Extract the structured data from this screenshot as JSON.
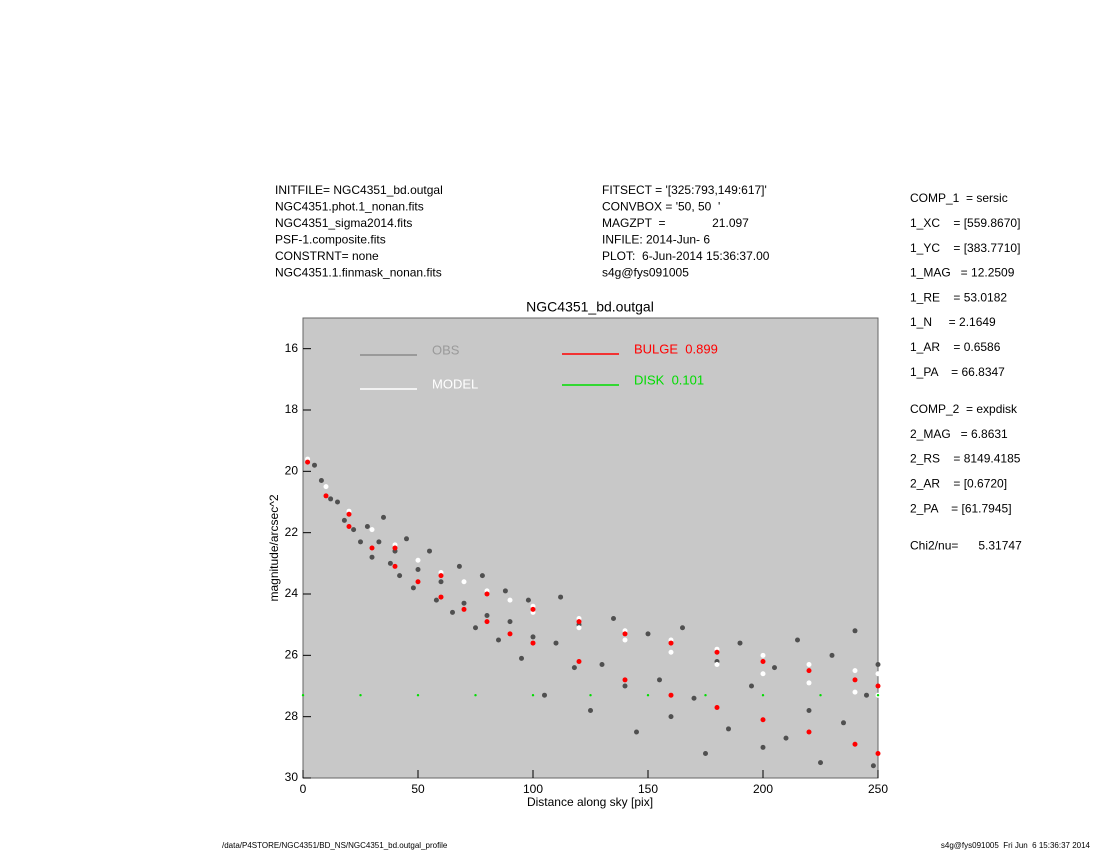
{
  "info_left": [
    "INITFILE= NGC4351_bd.outgal",
    "NGC4351.phot.1_nonan.fits",
    "NGC4351_sigma2014.fits",
    "PSF-1.composite.fits",
    "CONSTRNT= none",
    "NGC4351.1.finmask_nonan.fits"
  ],
  "info_middle": [
    "FITSECT = '[325:793,149:617]'",
    "CONVBOX = '50, 50  '",
    "MAGZPT  =              21.097",
    "INFILE: 2014-Jun- 6",
    "PLOT:  6-Jun-2014 15:36:37.00",
    "s4g@fys091005"
  ],
  "fit_params": [
    [
      "COMP_1  = sersic",
      "1_XC    = [559.8670]",
      "1_YC    = [383.7710]",
      "1_MAG   = 12.2509",
      "1_RE    = 53.0182",
      "1_N     = 2.1649",
      "1_AR    = 0.6586",
      "1_PA    = 66.8347"
    ],
    [
      "COMP_2  = expdisk",
      "2_MAG   = 6.8631",
      "2_RS    = 8149.4185",
      "2_AR    = [0.6720]",
      "2_PA    = [61.7945]"
    ],
    [
      "Chi2/nu=      5.31747"
    ]
  ],
  "footer_left": "/data/P4STORE/NGC4351/BD_NS/NGC4351_bd.outgal_profile",
  "footer_right": "s4g@fys091005  Fri Jun  6 15:36:37 2014",
  "chart_data": {
    "type": "scatter",
    "title": "NGC4351_bd.outgal",
    "x_label": "Distance along sky [pix]",
    "y_label": "magnitude/arcsec^2",
    "xlim": [
      0,
      250
    ],
    "xticks": [
      0,
      50,
      100,
      150,
      200,
      250
    ],
    "ylim": [
      15,
      30
    ],
    "y_inverted": true,
    "yticks": [
      16,
      18,
      20,
      22,
      24,
      26,
      28,
      30
    ],
    "background": "#c8c8c8",
    "series": [
      {
        "name": "OBS",
        "color": "#505050",
        "label_color": "#9a9a9a",
        "x": [
          5,
          8,
          12,
          15,
          18,
          22,
          25,
          28,
          30,
          33,
          35,
          38,
          40,
          42,
          45,
          48,
          50,
          55,
          58,
          60,
          65,
          68,
          70,
          75,
          78,
          80,
          85,
          88,
          90,
          95,
          98,
          100,
          105,
          110,
          112,
          118,
          120,
          125,
          130,
          135,
          140,
          145,
          150,
          155,
          160,
          165,
          170,
          175,
          180,
          185,
          190,
          195,
          200,
          205,
          210,
          215,
          220,
          225,
          230,
          235,
          240,
          245,
          248,
          250
        ],
        "y": [
          19.8,
          20.3,
          20.9,
          21.0,
          21.6,
          21.9,
          22.3,
          21.8,
          22.8,
          22.3,
          21.5,
          23.0,
          22.6,
          23.4,
          22.2,
          23.8,
          23.2,
          22.6,
          24.2,
          23.6,
          24.6,
          23.1,
          24.3,
          25.1,
          23.4,
          24.7,
          25.5,
          23.9,
          24.9,
          26.1,
          24.2,
          25.4,
          27.3,
          25.6,
          24.1,
          26.4,
          25.0,
          27.8,
          26.3,
          24.8,
          27.0,
          28.5,
          25.3,
          26.8,
          28.0,
          25.1,
          27.4,
          29.2,
          26.2,
          28.4,
          25.6,
          27.0,
          29.0,
          26.4,
          28.7,
          25.5,
          27.8,
          29.5,
          26.0,
          28.2,
          25.2,
          27.3,
          29.6,
          26.3
        ]
      },
      {
        "name": "MODEL",
        "color": "#ffffff",
        "label_color": "#ffffff",
        "x": [
          2,
          10,
          20,
          30,
          40,
          50,
          60,
          70,
          80,
          90,
          100,
          120,
          140,
          160,
          180,
          200,
          220,
          240,
          250,
          100,
          120,
          140,
          160,
          180,
          200,
          220,
          240,
          250
        ],
        "y": [
          19.6,
          20.5,
          21.3,
          21.9,
          22.4,
          22.9,
          23.3,
          23.6,
          23.9,
          24.2,
          24.4,
          24.8,
          25.2,
          25.5,
          25.8,
          26.0,
          26.3,
          26.5,
          26.6,
          24.6,
          25.1,
          25.5,
          25.9,
          26.3,
          26.6,
          26.9,
          27.2,
          27.3
        ]
      },
      {
        "name": "BULGE  0.899",
        "color": "#ff0000",
        "label_color": "#ff0000",
        "x": [
          2,
          10,
          20,
          30,
          40,
          50,
          60,
          70,
          80,
          90,
          100,
          120,
          140,
          160,
          180,
          200,
          220,
          240,
          250,
          20,
          40,
          60,
          80,
          100,
          120,
          140,
          160,
          180,
          200,
          220,
          240,
          250
        ],
        "y": [
          19.7,
          20.8,
          21.8,
          22.5,
          23.1,
          23.6,
          24.1,
          24.5,
          24.9,
          25.3,
          25.6,
          26.2,
          26.8,
          27.3,
          27.7,
          28.1,
          28.5,
          28.9,
          29.2,
          21.4,
          22.5,
          23.4,
          24.0,
          24.5,
          24.9,
          25.3,
          25.6,
          25.9,
          26.2,
          26.5,
          26.8,
          27.0
        ]
      },
      {
        "name": "DISK  0.101",
        "color": "#00dd00",
        "label_color": "#00dd00",
        "x": [
          0,
          25,
          50,
          75,
          100,
          125,
          150,
          175,
          200,
          225,
          250
        ],
        "y": [
          27.3,
          27.3,
          27.3,
          27.3,
          27.3,
          27.3,
          27.3,
          27.3,
          27.3,
          27.3,
          27.3
        ]
      }
    ]
  }
}
